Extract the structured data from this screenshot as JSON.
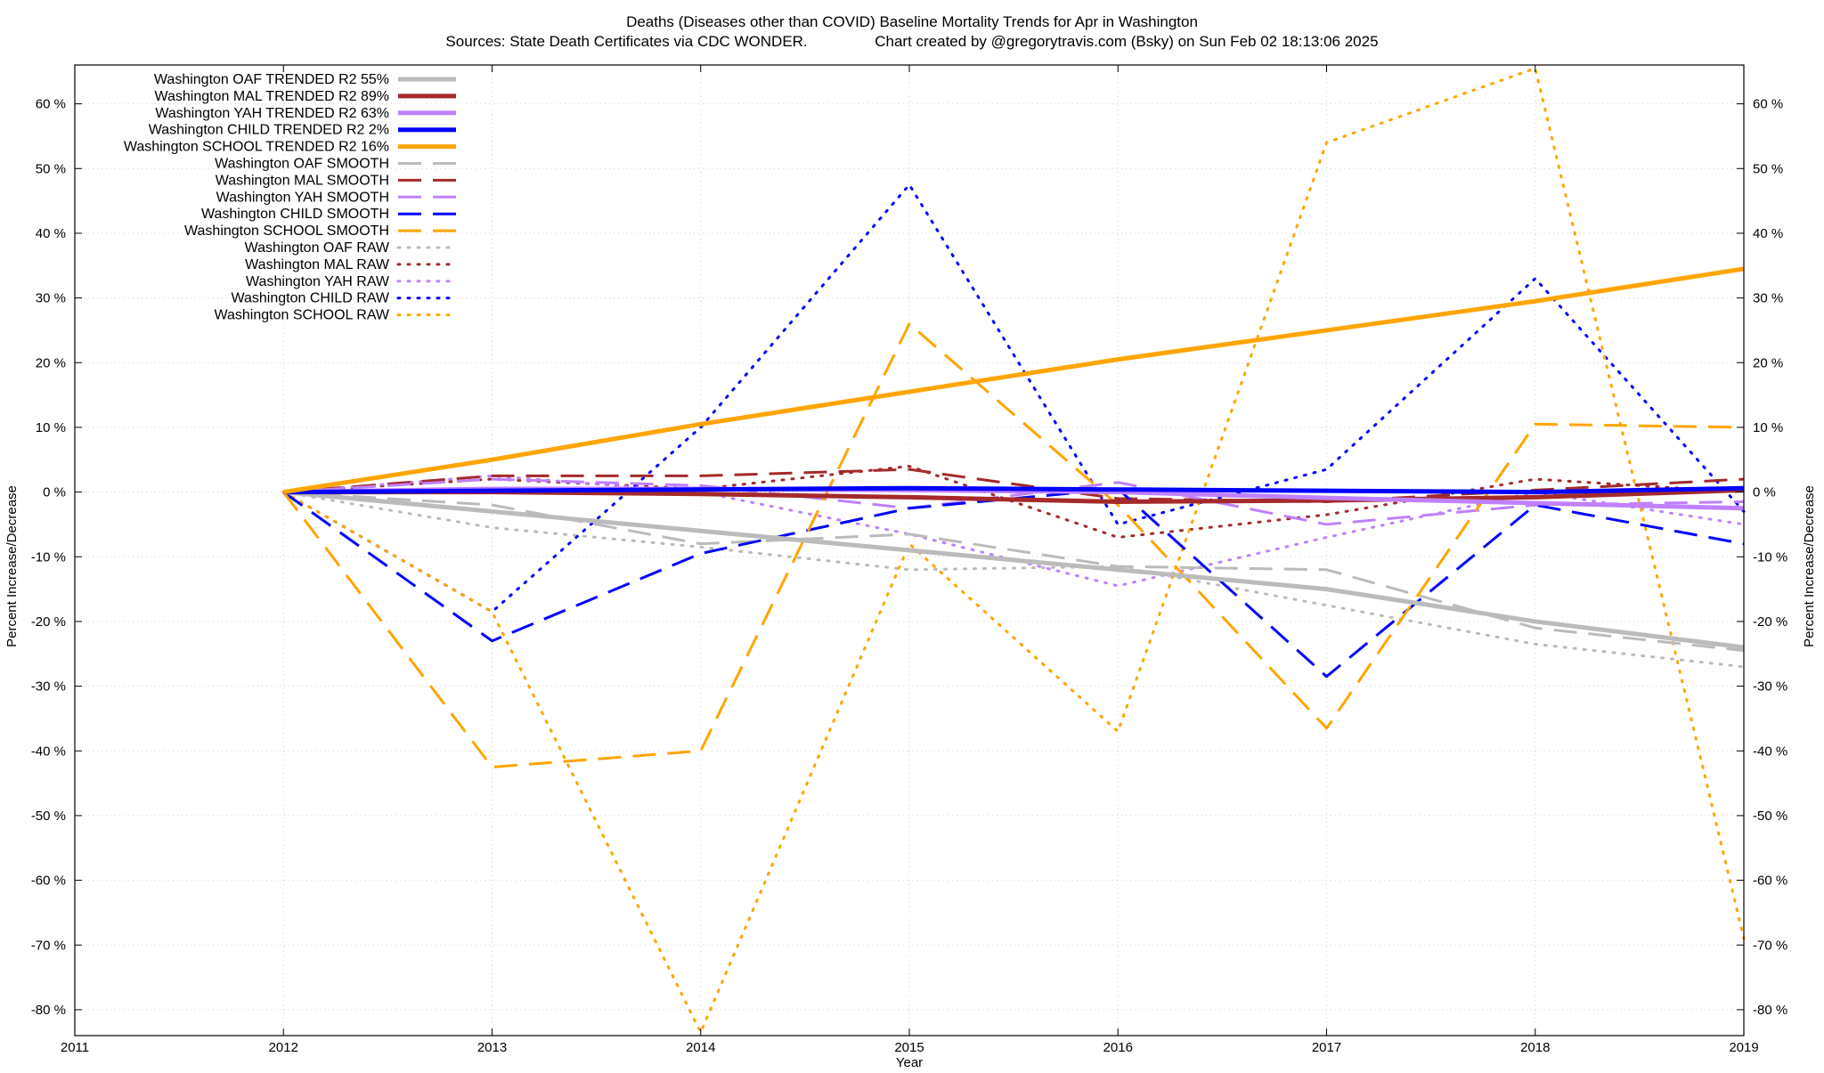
{
  "chart_data": {
    "type": "line",
    "title": "Deaths (Diseases other than COVID)  Baseline Mortality Trends for Apr in Washington",
    "subtitle": "Sources: State Death Certificates via CDC WONDER.                Chart created by @gregorytravis.com (Bsky) on Sun Feb 02 18:13:06 2025",
    "xlabel": "Year",
    "ylabel": "Percent Increase/Decrease",
    "ylabel_right": "Percent Increase/Decrease",
    "xlim": [
      2011,
      2019
    ],
    "ylim": [
      -84,
      66
    ],
    "x_ticks": [
      "2011",
      "2012",
      "2013",
      "2014",
      "2015",
      "2016",
      "2017",
      "2018",
      "2019"
    ],
    "y_ticks": [
      "60 %",
      "50 %",
      "40 %",
      "30 %",
      "20 %",
      "10 %",
      "0 %",
      "-10 %",
      "-20 %",
      "-30 %",
      "-40 %",
      "-50 %",
      "-60 %",
      "-70 %",
      "-80 %"
    ],
    "y_tick_values": [
      60,
      50,
      40,
      30,
      20,
      10,
      0,
      -10,
      -20,
      -30,
      -40,
      -50,
      -60,
      -70,
      -80
    ],
    "grid": true,
    "legend_position": "top-left",
    "x": [
      2012,
      2013,
      2014,
      2015,
      2016,
      2017,
      2018,
      2019
    ],
    "series": [
      {
        "name": "Washington OAF TRENDED R2  55%",
        "color": "#bbbbbb",
        "style": "solid",
        "values": [
          0,
          -3,
          -6,
          -9,
          -12,
          -15,
          -20,
          -24
        ]
      },
      {
        "name": "Washington MAL TRENDED R2  89%",
        "color": "#a52a2a",
        "style": "solid",
        "values": [
          0,
          0,
          -0.3,
          -0.8,
          -1.5,
          -1.3,
          -0.8,
          0.3
        ]
      },
      {
        "name": "Washington YAH TRENDED R2  63%",
        "color": "#c080ff",
        "style": "solid",
        "values": [
          0,
          0.5,
          0.5,
          0.3,
          0,
          -0.9,
          -1.7,
          -2.5
        ]
      },
      {
        "name": "Washington CHILD TRENDED R2   2%",
        "color": "#0000ff",
        "style": "solid",
        "values": [
          0,
          0.2,
          0.4,
          0.6,
          0.4,
          0.2,
          0,
          0.6
        ]
      },
      {
        "name": "Washington SCHOOL TRENDED R2  16%",
        "color": "#ffa500",
        "style": "solid",
        "values": [
          0,
          5,
          10.5,
          15.5,
          20.5,
          25,
          29.5,
          34.5
        ]
      },
      {
        "name": "Washington OAF SMOOTH",
        "color": "#bbbbbb",
        "style": "dashed",
        "values": [
          0,
          -2,
          -8,
          -6.5,
          -11.5,
          -12,
          -21,
          -24.5
        ]
      },
      {
        "name": "Washington MAL SMOOTH",
        "color": "#a52a2a",
        "style": "dashed",
        "values": [
          0,
          2.5,
          2.5,
          3.5,
          -1,
          -1.5,
          0.3,
          2
        ]
      },
      {
        "name": "Washington YAH SMOOTH",
        "color": "#c080ff",
        "style": "dashed",
        "values": [
          0,
          2,
          1,
          -2.5,
          1.5,
          -5,
          -2,
          -1.5
        ]
      },
      {
        "name": "Washington CHILD SMOOTH",
        "color": "#0000ff",
        "style": "dashed",
        "values": [
          0,
          -23,
          -9.5,
          -2.5,
          0.5,
          -28.5,
          -2,
          -8
        ]
      },
      {
        "name": "Washington SCHOOL SMOOTH",
        "color": "#ffa500",
        "style": "dashed",
        "values": [
          0,
          -42.5,
          -40,
          26,
          -2,
          -36.5,
          10.5,
          10
        ]
      },
      {
        "name": "Washington OAF RAW",
        "color": "#bbbbbb",
        "style": "dotted",
        "values": [
          0,
          -5.5,
          -8.5,
          -12,
          -11.5,
          -17.5,
          -23.5,
          -27
        ]
      },
      {
        "name": "Washington MAL RAW",
        "color": "#a52a2a",
        "style": "dotted",
        "values": [
          0,
          2,
          0.5,
          4,
          -7,
          -3.5,
          2,
          0
        ]
      },
      {
        "name": "Washington YAH RAW",
        "color": "#c080ff",
        "style": "dotted",
        "values": [
          0,
          2.5,
          0,
          -6.5,
          -14.5,
          -7,
          0,
          -5
        ]
      },
      {
        "name": "Washington CHILD RAW",
        "color": "#0000ff",
        "style": "dotted",
        "values": [
          0,
          -18.5,
          10,
          47.5,
          -5,
          3.5,
          33,
          -3
        ]
      },
      {
        "name": "Washington SCHOOL RAW",
        "color": "#ffa500",
        "style": "dotted",
        "values": [
          0,
          -18.5,
          -83.5,
          -8,
          -37,
          54,
          65.5,
          -69
        ]
      }
    ]
  }
}
